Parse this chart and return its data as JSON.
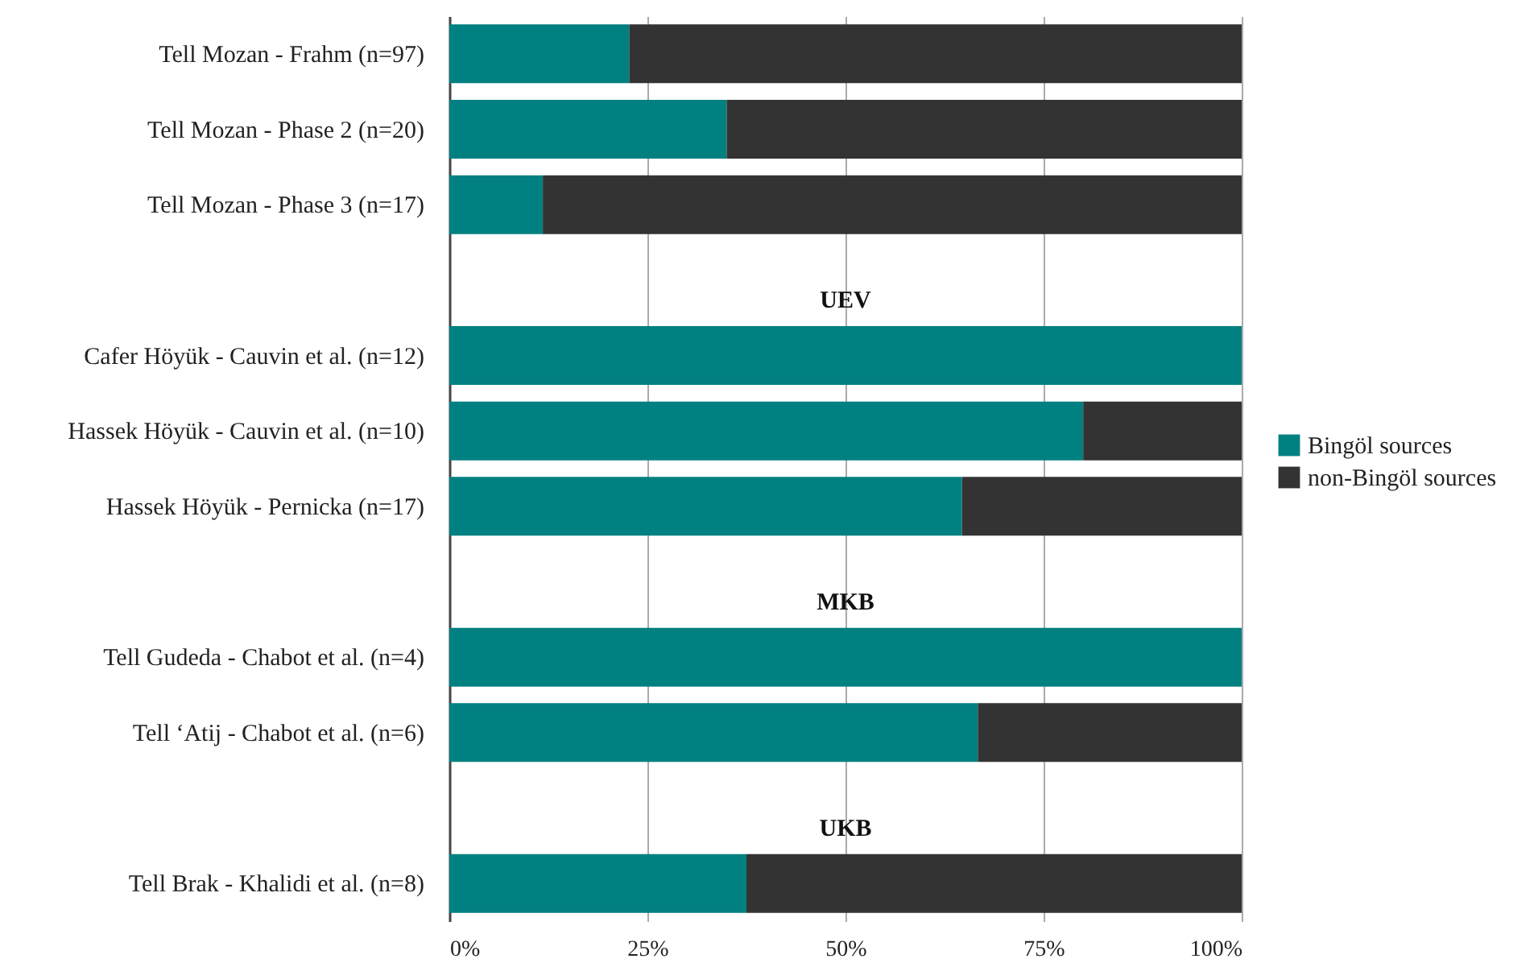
{
  "chart_data": {
    "type": "bar",
    "orientation": "horizontal",
    "stacked": true,
    "categories": [
      "Tell Mozan - Frahm (n=97)",
      "Tell Mozan - Phase 2 (n=20)",
      "Tell Mozan - Phase 3 (n=17)",
      null,
      "Cafer Höyük - Cauvin et al. (n=12)",
      "Hassek Höyük - Cauvin et al. (n=10)",
      "Hassek Höyük - Pernicka (n=17)",
      null,
      "Tell Gudeda - Chabot et al. (n=4)",
      "Tell ‘Atij - Chabot et al. (n=6)",
      null,
      "Tell Brak - Khalidi et al. (n=8)"
    ],
    "series": [
      {
        "name": "Bingöl sources",
        "color": "#008080",
        "values": [
          22.7,
          35,
          11.8,
          null,
          100,
          80,
          64.7,
          null,
          100,
          66.7,
          null,
          37.5
        ]
      },
      {
        "name": "non-Bingöl sources",
        "color": "#333333",
        "values": [
          77.3,
          65,
          88.2,
          null,
          0,
          20,
          35.3,
          null,
          0,
          33.3,
          null,
          62.5
        ]
      }
    ],
    "xlim": [
      0,
      100
    ],
    "xticks": [
      {
        "value": 0,
        "label": "0%"
      },
      {
        "value": 25,
        "label": "25%"
      },
      {
        "value": 50,
        "label": "50%"
      },
      {
        "value": 75,
        "label": "75%"
      },
      {
        "value": 100,
        "label": "100%"
      }
    ],
    "annotations": [
      "UEV",
      "MKB",
      "UKB"
    ],
    "grid": "x",
    "legend": "right"
  }
}
